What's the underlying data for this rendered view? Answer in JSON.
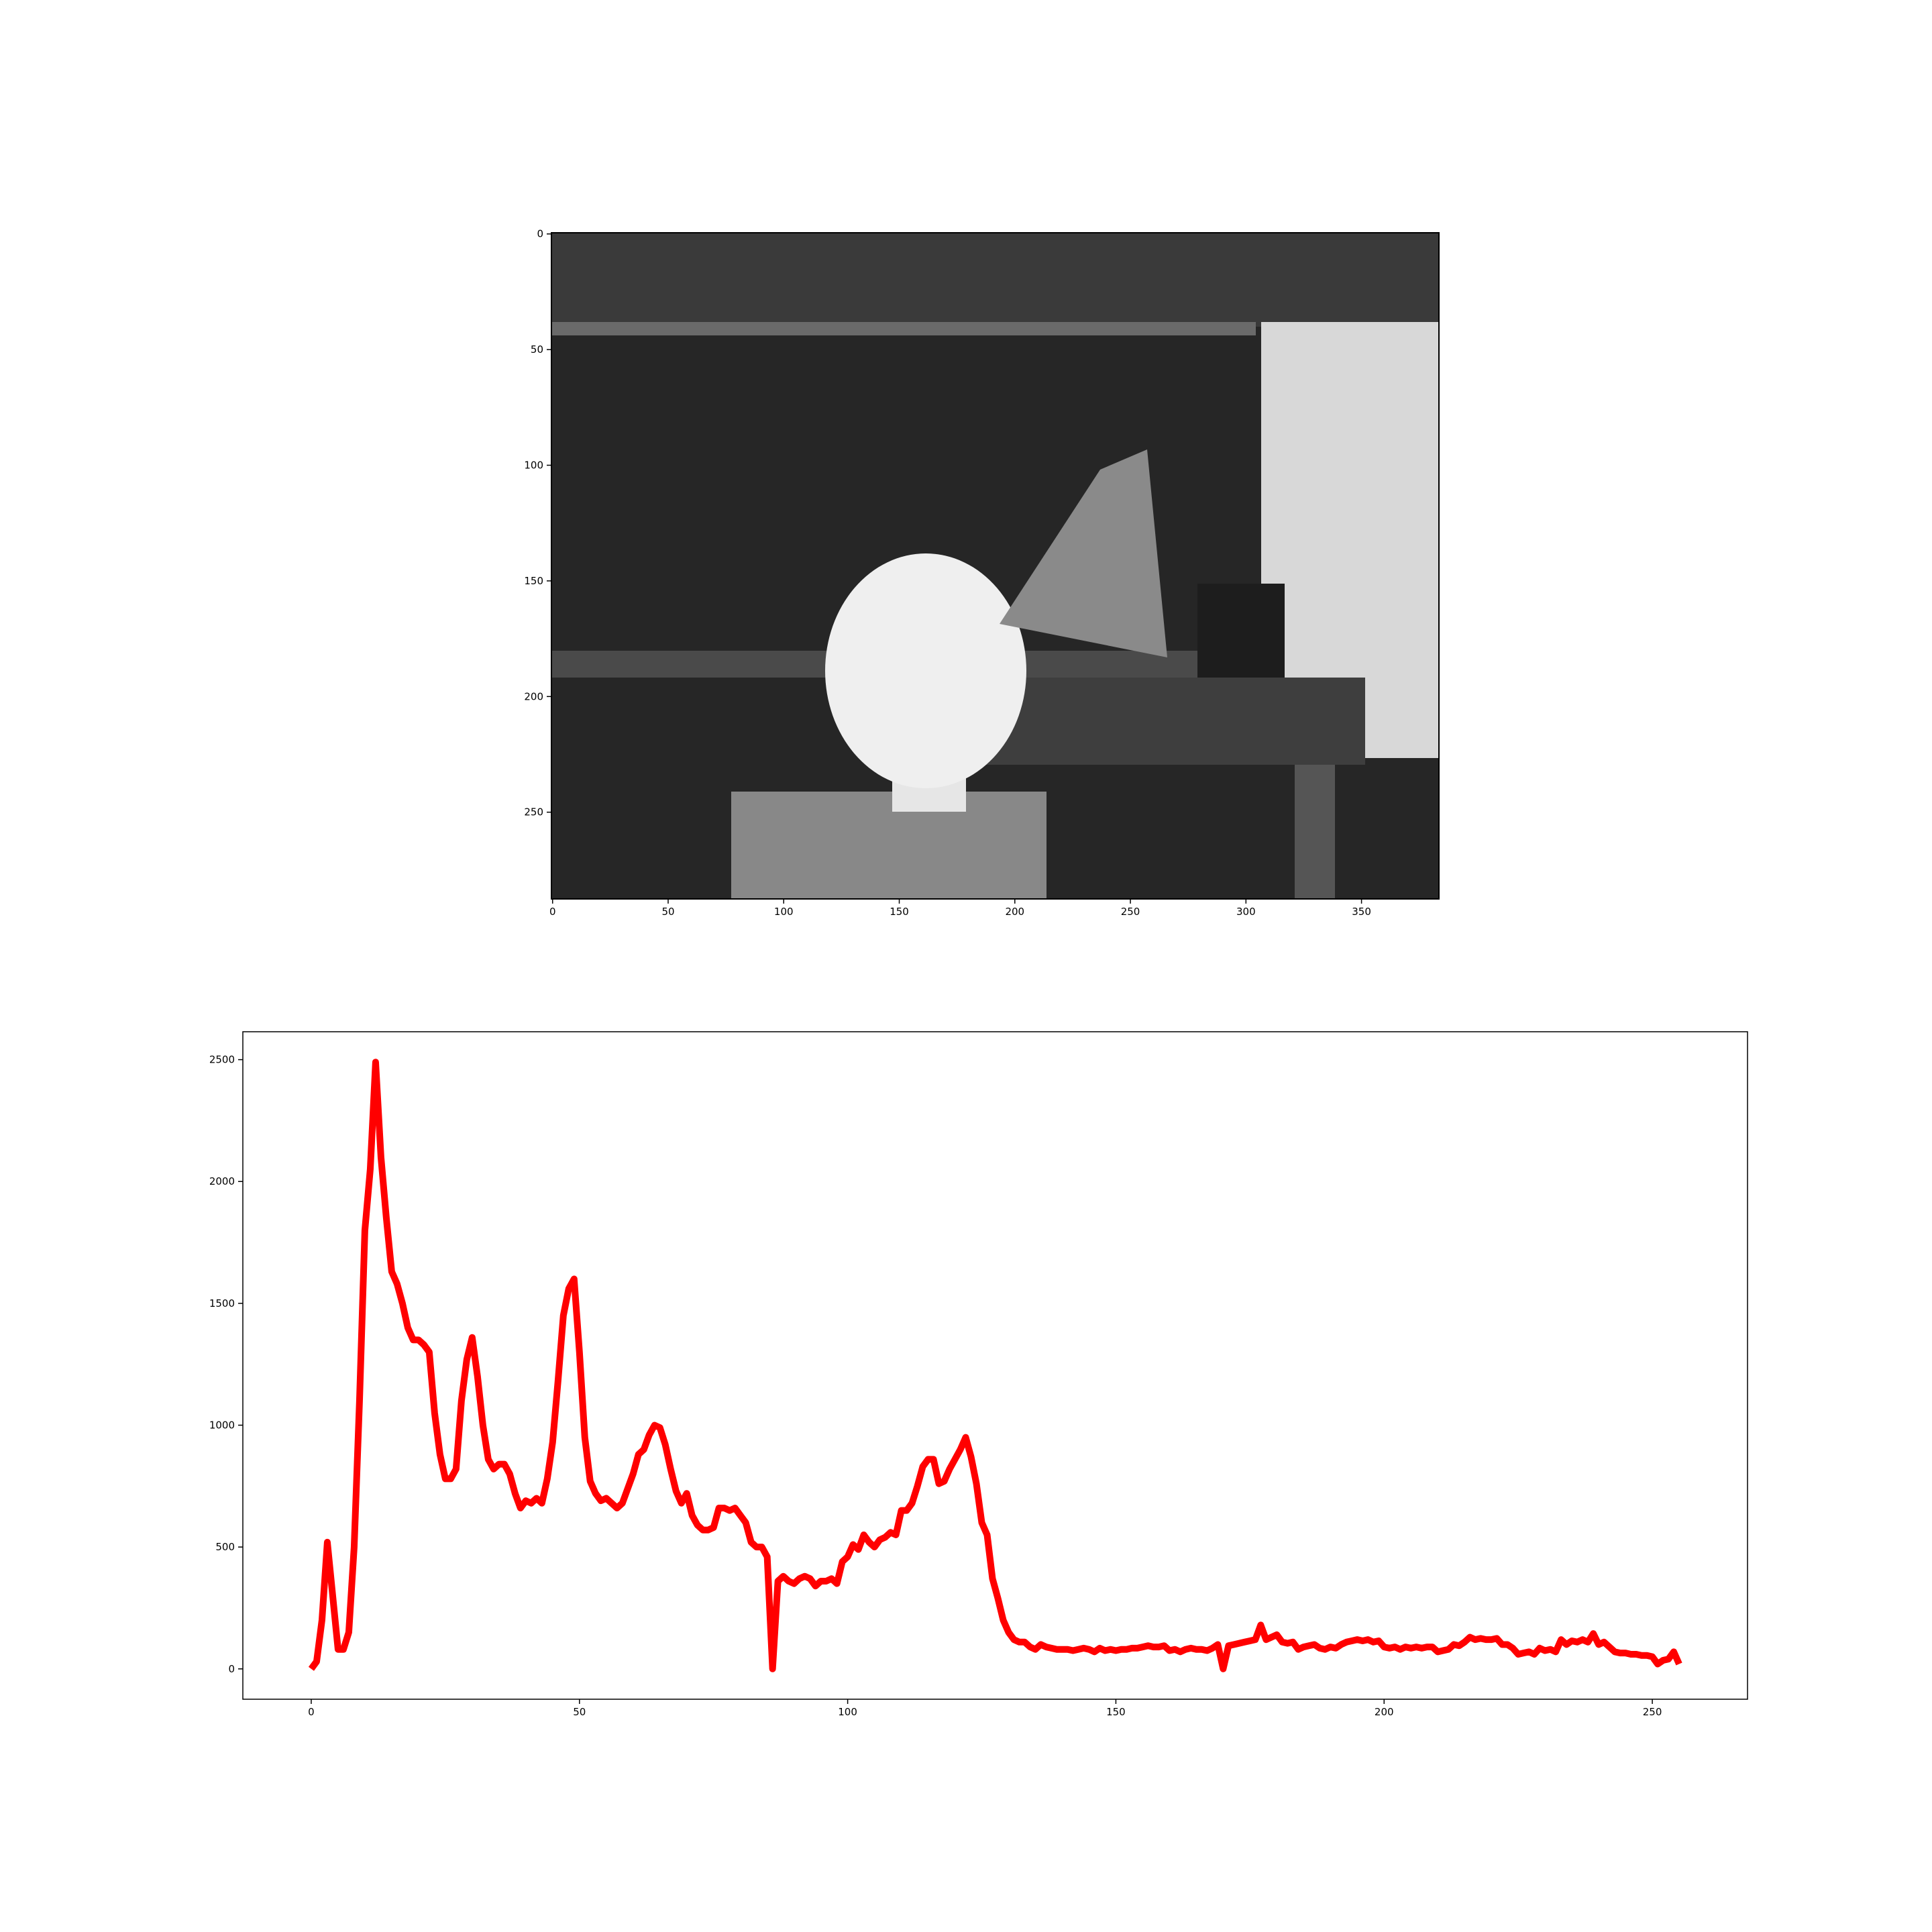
{
  "chart_data": [
    {
      "type": "image",
      "xlim": [
        -0.5,
        383.5
      ],
      "xticks": [
        0,
        50,
        100,
        150,
        200,
        250,
        300,
        350
      ],
      "ylim": [
        287.5,
        -0.5
      ],
      "yticks": [
        0,
        50,
        100,
        150,
        200,
        250
      ]
    },
    {
      "type": "line",
      "color": "#ff0000",
      "xlim": [
        -12.75,
        267.75
      ],
      "xticks": [
        0,
        50,
        100,
        150,
        200,
        250
      ],
      "ylim": [
        -124.5,
        2614.5
      ],
      "yticks": [
        0,
        500,
        1000,
        1500,
        2000,
        2500
      ],
      "x": [
        0,
        1,
        2,
        3,
        4,
        5,
        6,
        7,
        8,
        9,
        10,
        11,
        12,
        13,
        14,
        15,
        16,
        17,
        18,
        19,
        20,
        21,
        22,
        23,
        24,
        25,
        26,
        27,
        28,
        29,
        30,
        31,
        32,
        33,
        34,
        35,
        36,
        37,
        38,
        39,
        40,
        41,
        42,
        43,
        44,
        45,
        46,
        47,
        48,
        49,
        50,
        51,
        52,
        53,
        54,
        55,
        56,
        57,
        58,
        59,
        60,
        61,
        62,
        63,
        64,
        65,
        66,
        67,
        68,
        69,
        70,
        71,
        72,
        73,
        74,
        75,
        76,
        77,
        78,
        79,
        80,
        81,
        82,
        83,
        84,
        85,
        86,
        87,
        88,
        89,
        90,
        91,
        92,
        93,
        94,
        95,
        96,
        97,
        98,
        99,
        100,
        101,
        102,
        103,
        104,
        105,
        106,
        107,
        108,
        109,
        110,
        111,
        112,
        113,
        114,
        115,
        116,
        117,
        118,
        119,
        120,
        121,
        122,
        123,
        124,
        125,
        126,
        127,
        128,
        129,
        130,
        131,
        132,
        133,
        134,
        135,
        136,
        137,
        138,
        139,
        140,
        141,
        142,
        143,
        144,
        145,
        146,
        147,
        148,
        149,
        150,
        151,
        152,
        153,
        154,
        155,
        156,
        157,
        158,
        159,
        160,
        161,
        162,
        163,
        164,
        165,
        166,
        167,
        168,
        169,
        170,
        171,
        172,
        173,
        174,
        175,
        176,
        177,
        178,
        179,
        180,
        181,
        182,
        183,
        184,
        185,
        186,
        187,
        188,
        189,
        190,
        191,
        192,
        193,
        194,
        195,
        196,
        197,
        198,
        199,
        200,
        201,
        202,
        203,
        204,
        205,
        206,
        207,
        208,
        209,
        210,
        211,
        212,
        213,
        214,
        215,
        216,
        217,
        218,
        219,
        220,
        221,
        222,
        223,
        224,
        225,
        226,
        227,
        228,
        229,
        230,
        231,
        232,
        233,
        234,
        235,
        236,
        237,
        238,
        239,
        240,
        241,
        242,
        243,
        244,
        245,
        246,
        247,
        248,
        249,
        250,
        251,
        252,
        253,
        254,
        255
      ],
      "values": [
        0,
        30,
        200,
        520,
        300,
        80,
        80,
        150,
        500,
        1100,
        1800,
        2050,
        2490,
        2100,
        1850,
        1630,
        1580,
        1500,
        1400,
        1350,
        1350,
        1330,
        1300,
        1050,
        880,
        780,
        780,
        820,
        1100,
        1270,
        1360,
        1200,
        1000,
        860,
        820,
        840,
        840,
        800,
        720,
        660,
        690,
        680,
        700,
        680,
        780,
        930,
        1180,
        1450,
        1560,
        1600,
        1300,
        950,
        770,
        720,
        690,
        700,
        680,
        660,
        680,
        740,
        800,
        880,
        900,
        960,
        1000,
        990,
        920,
        820,
        730,
        680,
        720,
        630,
        590,
        570,
        570,
        580,
        660,
        660,
        650,
        660,
        630,
        600,
        520,
        500,
        500,
        460,
        0,
        360,
        380,
        360,
        350,
        370,
        380,
        370,
        340,
        360,
        360,
        370,
        350,
        440,
        460,
        510,
        490,
        550,
        520,
        500,
        530,
        540,
        560,
        550,
        650,
        650,
        680,
        750,
        830,
        860,
        860,
        760,
        770,
        820,
        860,
        900,
        950,
        870,
        760,
        600,
        550,
        370,
        290,
        200,
        150,
        120,
        110,
        110,
        90,
        80,
        100,
        90,
        85,
        80,
        80,
        80,
        75,
        80,
        85,
        80,
        70,
        85,
        75,
        80,
        75,
        80,
        80,
        85,
        85,
        90,
        95,
        90,
        90,
        95,
        75,
        80,
        70,
        80,
        85,
        80,
        80,
        75,
        85,
        100,
        0,
        95,
        100,
        105,
        110,
        115,
        120,
        180,
        120,
        130,
        140,
        110,
        105,
        110,
        80,
        90,
        95,
        100,
        85,
        80,
        90,
        85,
        100,
        110,
        115,
        120,
        115,
        120,
        110,
        115,
        90,
        85,
        90,
        80,
        90,
        85,
        90,
        85,
        90,
        90,
        70,
        75,
        80,
        100,
        95,
        110,
        130,
        120,
        125,
        120,
        120,
        125,
        100,
        100,
        85,
        60,
        65,
        70,
        60,
        85,
        75,
        80,
        70,
        120,
        100,
        115,
        110,
        120,
        110,
        145,
        100,
        110,
        90,
        70,
        65,
        65,
        60,
        60,
        55,
        55,
        50,
        20,
        35,
        40,
        70,
        20
      ]
    }
  ]
}
